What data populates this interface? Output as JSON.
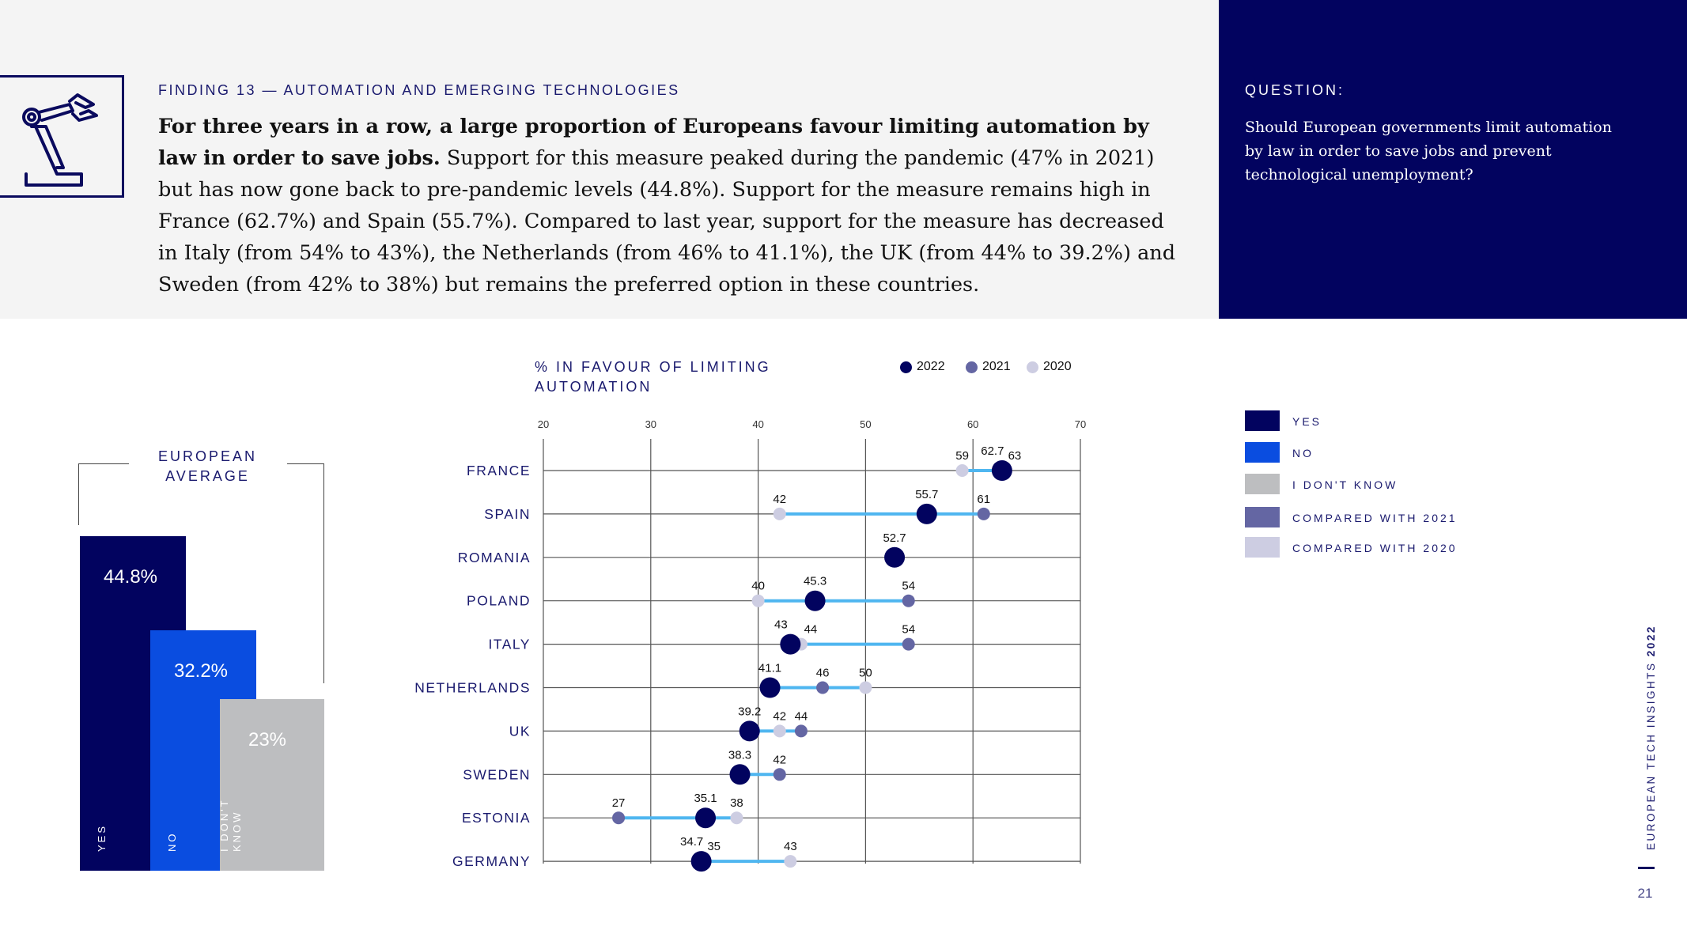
{
  "finding": {
    "label": "FINDING 13 — AUTOMATION AND EMERGING TECHNOLOGIES",
    "headline": "For three years in a row, a large proportion of Europeans favour limiting automation by law in order to save jobs.",
    "body": "Support for this measure peaked during the pandemic (47% in 2021) but has now gone back to pre-pandemic levels (44.8%). Support for the measure remains high in France (62.7%) and Spain (55.7%). Compared to last year, support for the measure has decreased in Italy (from 54% to 43%), the Netherlands (from 46% to 41.1%), the UK (from 44% to 39.2%) and Sweden (from 42% to 38%) but remains the preferred option in these countries.",
    "icon": "robot-arm-icon"
  },
  "question": {
    "label": "QUESTION:",
    "text": "Should European governments limit automation by law in order to save jobs and prevent technological unemployment?"
  },
  "legend": {
    "items": [
      {
        "label": "YES",
        "color": "#02035f"
      },
      {
        "label": "NO",
        "color": "#0a4de0"
      },
      {
        "label": "I DON'T KNOW",
        "color": "#bdbec0"
      },
      {
        "label": "COMPARED WITH 2021",
        "color": "#6466a3"
      },
      {
        "label": "COMPARED WITH 2020",
        "color": "#cdcde2"
      }
    ]
  },
  "side": {
    "title": "EUROPEAN TECH INSIGHTS",
    "year": "2022",
    "page": "21"
  },
  "chart_data": [
    {
      "type": "bar",
      "title_line1": "EUROPEAN",
      "title_line2": "AVERAGE",
      "categories": [
        "YES",
        "NO",
        "I DON'T KNOW"
      ],
      "category_lines": [
        [
          "YES"
        ],
        [
          "NO"
        ],
        [
          "I DON'T",
          "KNOW"
        ]
      ],
      "values": [
        44.8,
        32.2,
        23
      ],
      "value_labels": [
        "44.8%",
        "32.2%",
        "23%"
      ],
      "colors": [
        "#02035f",
        "#0a4de0",
        "#bdbec0"
      ]
    },
    {
      "type": "scatter",
      "subtype": "dumbbell",
      "title_line1": "% IN FAVOUR OF LIMITING",
      "title_line2": "AUTOMATION",
      "xlim": [
        20,
        70
      ],
      "xticks": [
        20,
        30,
        40,
        50,
        60,
        70
      ],
      "grid": true,
      "series": [
        {
          "name": "2022",
          "color": "#02035f"
        },
        {
          "name": "2021",
          "color": "#6466a3"
        },
        {
          "name": "2020",
          "color": "#cdcde2"
        }
      ],
      "connector_color": "#4fb6f0",
      "countries": [
        {
          "name": "FRANCE",
          "v2022": 62.7,
          "v2021": 63,
          "v2020": 59
        },
        {
          "name": "SPAIN",
          "v2022": 55.7,
          "v2021": 61,
          "v2020": 42
        },
        {
          "name": "ROMANIA",
          "v2022": 52.7,
          "v2021": null,
          "v2020": null
        },
        {
          "name": "POLAND",
          "v2022": 45.3,
          "v2021": 54,
          "v2020": 40
        },
        {
          "name": "ITALY",
          "v2022": 43,
          "v2021": 54,
          "v2020": 44
        },
        {
          "name": "NETHERLANDS",
          "v2022": 41.1,
          "v2021": 46,
          "v2020": 50
        },
        {
          "name": "UK",
          "v2022": 39.2,
          "v2021": 44,
          "v2020": 42
        },
        {
          "name": "SWEDEN",
          "v2022": 38.3,
          "v2021": 42,
          "v2020": null
        },
        {
          "name": "ESTONIA",
          "v2022": 35.1,
          "v2021": 27,
          "v2020": 38
        },
        {
          "name": "GERMANY",
          "v2022": 34.7,
          "v2021": 35,
          "v2020": 43
        }
      ]
    }
  ]
}
